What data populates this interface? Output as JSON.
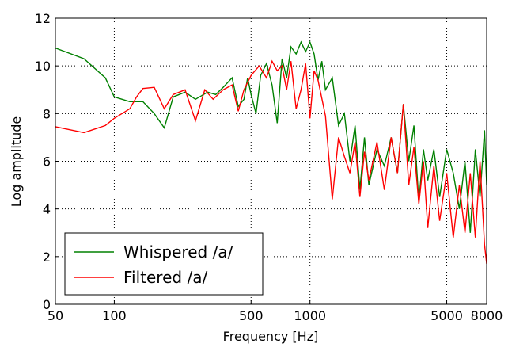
{
  "chart_data": {
    "type": "line",
    "xlabel": "Frequency [Hz]",
    "ylabel": "Log amplitude",
    "xscale": "log",
    "xlim": [
      50,
      8000
    ],
    "xticks": [
      50,
      100,
      500,
      1000,
      5000,
      8000
    ],
    "ylim": [
      0,
      12
    ],
    "yticks": [
      0,
      2,
      4,
      6,
      8,
      10,
      12
    ],
    "grid": true,
    "legend": "lower left",
    "series": [
      {
        "name": "Whispered /a/",
        "color": "#008000",
        "x": [
          50,
          70,
          90,
          100,
          120,
          140,
          160,
          180,
          200,
          230,
          260,
          300,
          330,
          360,
          400,
          430,
          460,
          480,
          500,
          530,
          560,
          600,
          640,
          680,
          720,
          760,
          800,
          850,
          900,
          950,
          1000,
          1050,
          1100,
          1150,
          1200,
          1300,
          1400,
          1500,
          1600,
          1700,
          1800,
          1900,
          2000,
          2200,
          2400,
          2600,
          2800,
          3000,
          3200,
          3400,
          3600,
          3800,
          4000,
          4300,
          4600,
          5000,
          5400,
          5800,
          6200,
          6600,
          7000,
          7400,
          7800,
          8000
        ],
        "values": [
          10.75,
          10.3,
          9.5,
          8.7,
          8.5,
          8.5,
          8.0,
          7.4,
          8.7,
          8.9,
          8.6,
          8.9,
          8.8,
          9.1,
          9.5,
          8.3,
          8.6,
          9.5,
          8.8,
          8.0,
          9.6,
          10.1,
          9.2,
          7.6,
          10.3,
          9.5,
          10.8,
          10.5,
          11.0,
          10.6,
          11.0,
          10.5,
          9.4,
          10.2,
          9.0,
          9.5,
          7.5,
          8.0,
          6.0,
          7.5,
          4.8,
          7.0,
          5.0,
          6.5,
          5.8,
          7.0,
          5.5,
          8.4,
          6.0,
          7.5,
          4.3,
          6.5,
          5.2,
          6.5,
          4.5,
          6.5,
          5.5,
          4.0,
          6.0,
          3.0,
          6.5,
          4.5,
          7.3,
          5.0
        ]
      },
      {
        "name": "Filtered /a/",
        "color": "#ff0000",
        "x": [
          50,
          70,
          90,
          100,
          120,
          130,
          140,
          160,
          180,
          200,
          230,
          260,
          290,
          320,
          360,
          400,
          430,
          460,
          500,
          550,
          600,
          640,
          680,
          720,
          760,
          800,
          850,
          900,
          950,
          1000,
          1050,
          1100,
          1200,
          1300,
          1400,
          1500,
          1600,
          1700,
          1800,
          1900,
          2000,
          2200,
          2400,
          2600,
          2800,
          3000,
          3200,
          3400,
          3600,
          3800,
          4000,
          4300,
          4600,
          5000,
          5400,
          5800,
          6200,
          6600,
          7000,
          7400,
          7800,
          8000
        ],
        "values": [
          7.45,
          7.2,
          7.5,
          7.8,
          8.2,
          8.7,
          9.05,
          9.1,
          8.2,
          8.8,
          9.0,
          7.7,
          9.0,
          8.6,
          9.0,
          9.2,
          8.1,
          9.0,
          9.6,
          10.0,
          9.5,
          10.2,
          9.8,
          10.0,
          9.0,
          10.2,
          8.2,
          9.0,
          10.1,
          7.8,
          9.8,
          9.4,
          7.9,
          4.4,
          7.0,
          6.2,
          5.5,
          6.8,
          4.5,
          6.4,
          5.2,
          6.8,
          4.8,
          7.0,
          5.5,
          8.4,
          5.0,
          6.6,
          4.2,
          6.0,
          3.2,
          5.8,
          3.5,
          5.5,
          2.8,
          5.0,
          3.0,
          5.5,
          2.8,
          6.0,
          2.5,
          1.7
        ]
      }
    ]
  }
}
